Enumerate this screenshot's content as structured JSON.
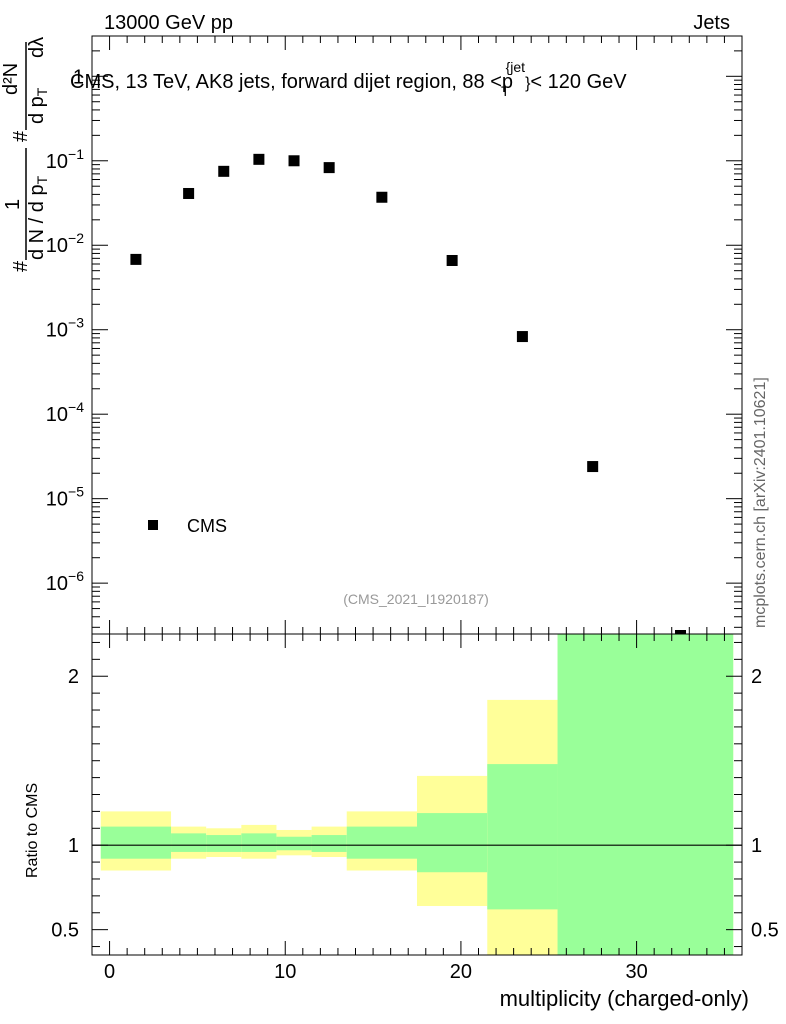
{
  "header": {
    "left": "13000 GeV pp",
    "right": "Jets"
  },
  "watermark": "mcplots.cern.ch [arXiv:2401.10621]",
  "colors": {
    "band_outer": "#ffff99",
    "band_inner": "#99ff99",
    "marker": "#000000"
  },
  "chart_data": [
    {
      "type": "scatter",
      "title": "CMS, 13 TeV, AK8 jets, forward dijet region, 88 <p_T^{jet}< 120 GeV",
      "title_parts": {
        "prefix": "CMS, 13 TeV, AK8 jets, forward dijet region, 88 <p",
        "sub": "T",
        "sup": "{jet",
        "sup_end": "}",
        "suffix": "< 120 GeV"
      },
      "ylabel": "1/(dN/dp_T) d²N/(dp_T dλ)",
      "ylabel_parts": {
        "hash": "#",
        "one": "1",
        "den": "d N / d p",
        "den_sub": "T",
        "num_hash": "#",
        "num": "d²N",
        "num2": "d p",
        "num2_sub": "T",
        "lam": "dλ"
      },
      "yscale": "log",
      "ylim": [
        2.5e-07,
        3
      ],
      "xlim": [
        -1,
        36
      ],
      "y_tick_labels": [
        {
          "value": 1,
          "base": "1",
          "exp": ""
        },
        {
          "value": 0.1,
          "base": "10",
          "exp": "−1"
        },
        {
          "value": 0.01,
          "base": "10",
          "exp": "−2"
        },
        {
          "value": 0.001,
          "base": "10",
          "exp": "−3"
        },
        {
          "value": 0.0001,
          "base": "10",
          "exp": "−4"
        },
        {
          "value": 1e-05,
          "base": "10",
          "exp": "−5"
        },
        {
          "value": 1e-06,
          "base": "10",
          "exp": "−6"
        }
      ],
      "legend": {
        "entries": [
          "CMS"
        ],
        "placement": "bottom-left"
      },
      "series": [
        {
          "name": "CMS",
          "x": [
            1.5,
            4.5,
            6.5,
            8.5,
            10.5,
            12.5,
            15.5,
            19.5,
            23.5,
            27.5,
            32.5
          ],
          "y": [
            0.0068,
            0.041,
            0.075,
            0.104,
            0.1,
            0.083,
            0.037,
            0.0066,
            0.00083,
            2.4e-05,
            2.4e-07
          ]
        }
      ],
      "annotation": "(CMS_2021_I1920187)"
    },
    {
      "type": "area",
      "ylabel": "Ratio to CMS",
      "xlabel": "multiplicity (charged-only)",
      "ylim": [
        0.35,
        2.25
      ],
      "xlim": [
        -1,
        36
      ],
      "x_ticks": [
        0,
        10,
        20,
        30
      ],
      "y_ticks": [
        0.5,
        1,
        2
      ],
      "reference_line": 1,
      "bins": [
        {
          "lo": -0.5,
          "hi": 3.5,
          "outer": [
            0.85,
            1.2
          ],
          "inner": [
            0.92,
            1.11
          ]
        },
        {
          "lo": 3.5,
          "hi": 5.5,
          "outer": [
            0.92,
            1.11
          ],
          "inner": [
            0.96,
            1.07
          ]
        },
        {
          "lo": 5.5,
          "hi": 7.5,
          "outer": [
            0.93,
            1.1
          ],
          "inner": [
            0.96,
            1.06
          ]
        },
        {
          "lo": 7.5,
          "hi": 9.5,
          "outer": [
            0.92,
            1.12
          ],
          "inner": [
            0.96,
            1.07
          ]
        },
        {
          "lo": 9.5,
          "hi": 11.5,
          "outer": [
            0.94,
            1.09
          ],
          "inner": [
            0.97,
            1.05
          ]
        },
        {
          "lo": 11.5,
          "hi": 13.5,
          "outer": [
            0.93,
            1.11
          ],
          "inner": [
            0.96,
            1.06
          ]
        },
        {
          "lo": 13.5,
          "hi": 17.5,
          "outer": [
            0.85,
            1.2
          ],
          "inner": [
            0.92,
            1.11
          ]
        },
        {
          "lo": 17.5,
          "hi": 21.5,
          "outer": [
            0.64,
            1.41
          ],
          "inner": [
            0.84,
            1.19
          ]
        },
        {
          "lo": 21.5,
          "hi": 25.5,
          "outer": [
            0.35,
            1.86
          ],
          "inner": [
            0.62,
            1.48
          ]
        },
        {
          "lo": 25.5,
          "hi": 35.5,
          "outer": [
            0.35,
            2.25
          ],
          "inner": [
            0.35,
            2.25
          ]
        }
      ]
    }
  ]
}
